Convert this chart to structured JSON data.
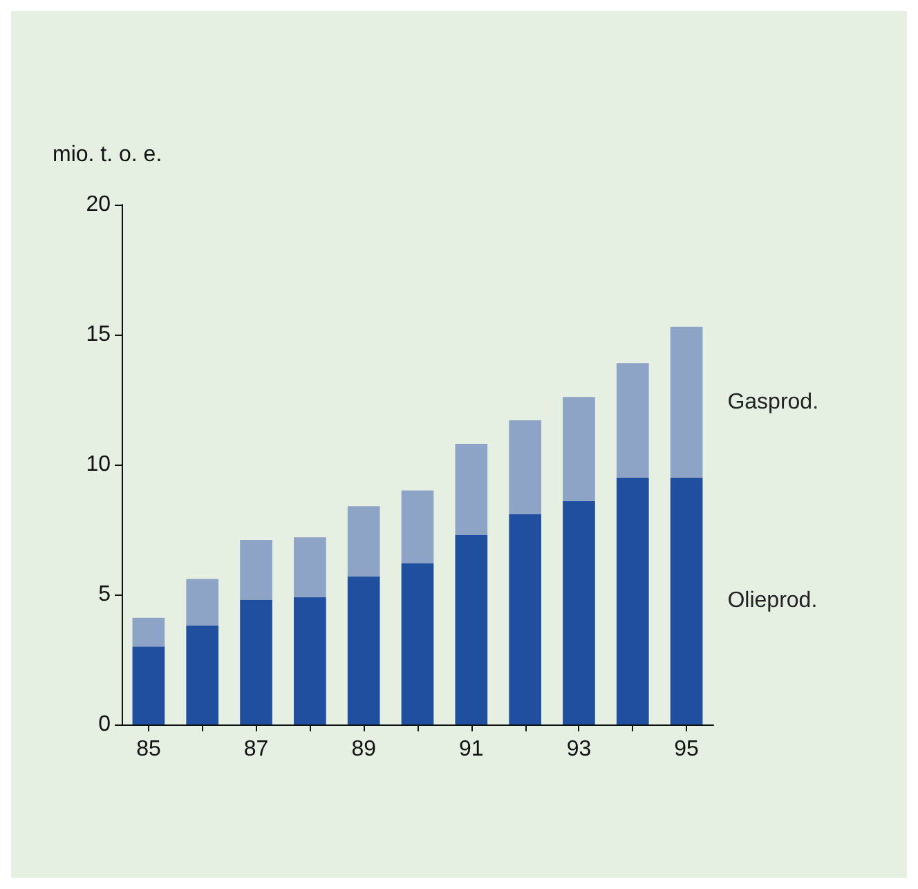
{
  "chart_data": {
    "type": "bar",
    "ylabel": "mio. t. o. e.",
    "categories": [
      "85",
      null,
      "87",
      null,
      "89",
      null,
      "91",
      null,
      "93",
      null,
      "95"
    ],
    "stacked": true,
    "ylim": [
      0,
      20
    ],
    "yticks": [
      0,
      5,
      10,
      15,
      20
    ],
    "series": [
      {
        "name": "Olieprod.",
        "color": "#1f4f9e",
        "values": [
          3.0,
          3.8,
          4.8,
          4.9,
          5.7,
          6.2,
          7.3,
          8.1,
          8.6,
          9.5,
          9.5
        ]
      },
      {
        "name": "Gasprod.",
        "color": "#8da4c6",
        "values": [
          1.1,
          1.8,
          2.3,
          2.3,
          2.7,
          2.8,
          3.5,
          3.6,
          4.0,
          4.4,
          5.8
        ]
      }
    ]
  }
}
